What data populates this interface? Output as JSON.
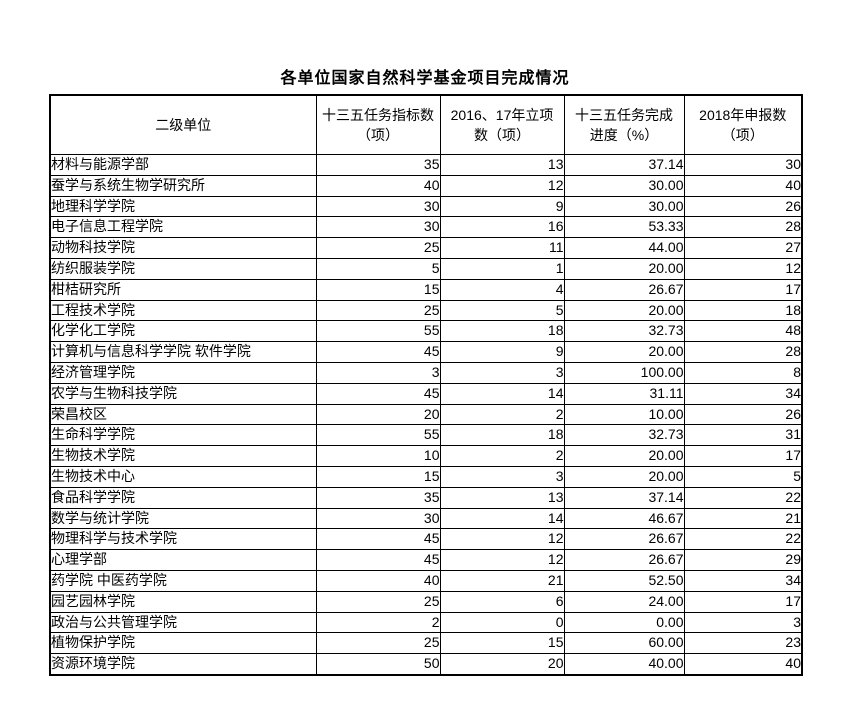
{
  "title": "各单位国家自然科学基金项目完成情况",
  "table": {
    "columns": [
      "二级单位",
      "十三五任务指标数（项）",
      "2016、17年立项数（项）",
      "十三五任务完成进度（%）",
      "2018年申报数（项）"
    ],
    "rows": [
      [
        "材料与能源学部",
        "35",
        "13",
        "37.14",
        "30"
      ],
      [
        "蚕学与系统生物学研究所",
        "40",
        "12",
        "30.00",
        "40"
      ],
      [
        "地理科学学院",
        "30",
        "9",
        "30.00",
        "26"
      ],
      [
        "电子信息工程学院",
        "30",
        "16",
        "53.33",
        "28"
      ],
      [
        "动物科技学院",
        "25",
        "11",
        "44.00",
        "27"
      ],
      [
        "纺织服装学院",
        "5",
        "1",
        "20.00",
        "12"
      ],
      [
        "柑桔研究所",
        "15",
        "4",
        "26.67",
        "17"
      ],
      [
        "工程技术学院",
        "25",
        "5",
        "20.00",
        "18"
      ],
      [
        "化学化工学院",
        "55",
        "18",
        "32.73",
        "48"
      ],
      [
        "计算机与信息科学学院 软件学院",
        "45",
        "9",
        "20.00",
        "28"
      ],
      [
        "经济管理学院",
        "3",
        "3",
        "100.00",
        "8"
      ],
      [
        "农学与生物科技学院",
        "45",
        "14",
        "31.11",
        "34"
      ],
      [
        "荣昌校区",
        "20",
        "2",
        "10.00",
        "26"
      ],
      [
        "生命科学学院",
        "55",
        "18",
        "32.73",
        "31"
      ],
      [
        "生物技术学院",
        "10",
        "2",
        "20.00",
        "17"
      ],
      [
        "生物技术中心",
        "15",
        "3",
        "20.00",
        "5"
      ],
      [
        "食品科学学院",
        "35",
        "13",
        "37.14",
        "22"
      ],
      [
        "数学与统计学院",
        "30",
        "14",
        "46.67",
        "21"
      ],
      [
        "物理科学与技术学院",
        "45",
        "12",
        "26.67",
        "22"
      ],
      [
        "心理学部",
        "45",
        "12",
        "26.67",
        "29"
      ],
      [
        "药学院 中医药学院",
        "40",
        "21",
        "52.50",
        "34"
      ],
      [
        "园艺园林学院",
        "25",
        "6",
        "24.00",
        "17"
      ],
      [
        "政治与公共管理学院",
        "2",
        "0",
        "0.00",
        "3"
      ],
      [
        "植物保护学院",
        "25",
        "15",
        "60.00",
        "23"
      ],
      [
        "资源环境学院",
        "50",
        "20",
        "40.00",
        "40"
      ]
    ]
  }
}
